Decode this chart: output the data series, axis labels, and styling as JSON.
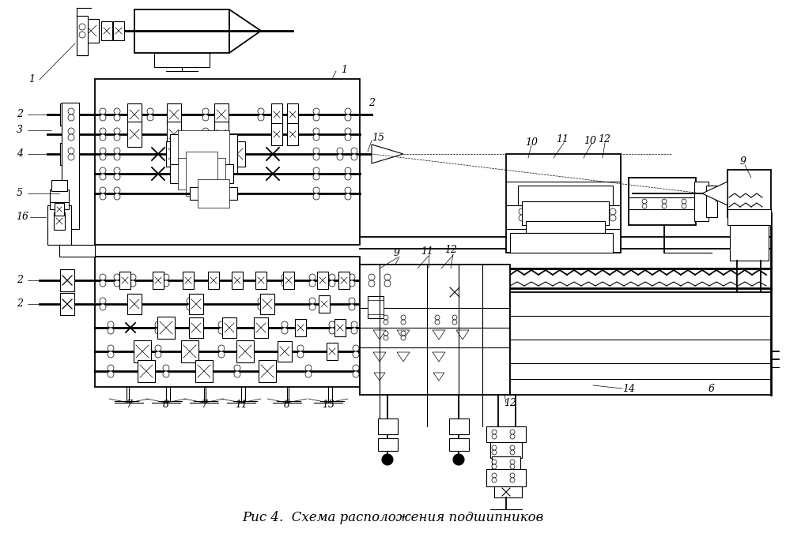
{
  "title": "Рис 4.  Схема расположения подшипников",
  "title_fontsize": 12,
  "background_color": "#ffffff",
  "line_color": "#000000",
  "fig_width": 9.95,
  "fig_height": 6.75,
  "dpi": 100
}
